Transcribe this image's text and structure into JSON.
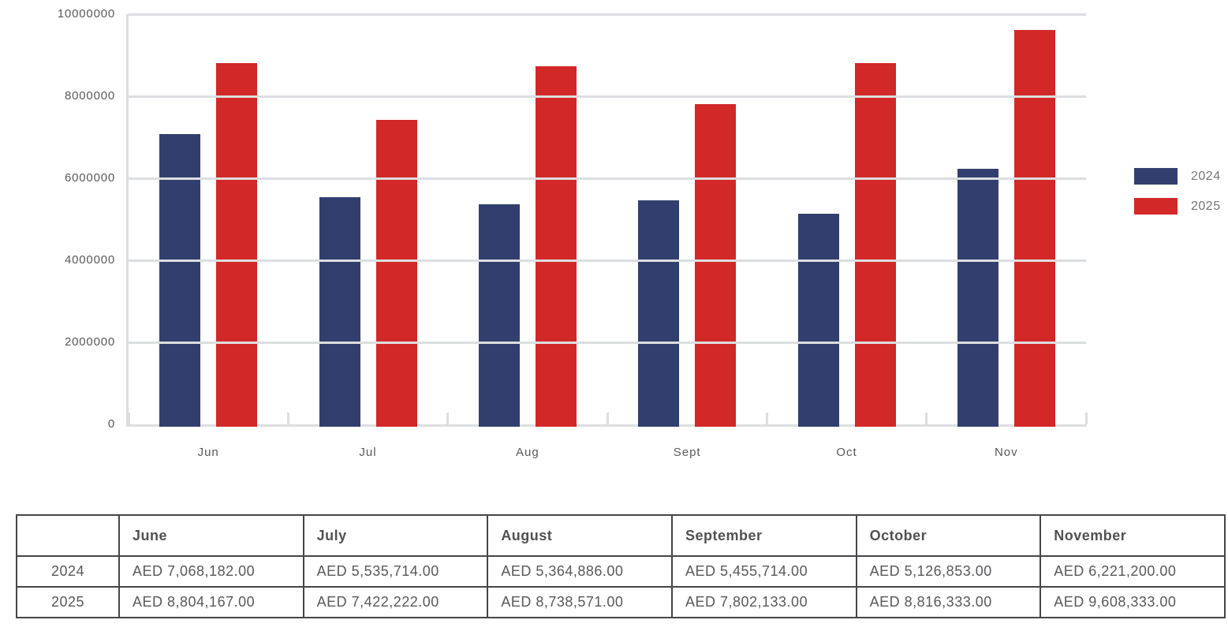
{
  "chart_data": {
    "type": "bar",
    "title": "",
    "categories": [
      "Jun",
      "Jul",
      "Aug",
      "Sept",
      "Oct",
      "Nov"
    ],
    "series": [
      {
        "name": "2024",
        "color": "#323F6E",
        "values": [
          7068182,
          5535714,
          5364886,
          5455714,
          5126853,
          6221200
        ]
      },
      {
        "name": "2025",
        "color": "#D22828",
        "values": [
          8804167,
          7422222,
          8738571,
          7802133,
          8816333,
          9608333
        ]
      }
    ],
    "xlabel": "",
    "ylabel": "",
    "ylim": [
      0,
      10000000
    ],
    "ytick_interval": 2000000,
    "ytick_labels": [
      "0",
      "2000000",
      "4000000",
      "6000000",
      "8000000",
      "10000000"
    ],
    "grid": true,
    "legend_position": "right"
  },
  "legend": {
    "items": [
      {
        "label": "2024",
        "color": "#323F6E"
      },
      {
        "label": "2025",
        "color": "#D22828"
      }
    ]
  },
  "table": {
    "corner_label": "",
    "columns": [
      "June",
      "July",
      "August",
      "September",
      "October",
      "November"
    ],
    "rows": [
      {
        "label": "2024",
        "values": [
          "AED 7,068,182.00",
          "AED 5,535,714.00",
          "AED 5,364,886.00",
          "AED 5,455,714.00",
          "AED 5,126,853.00",
          "AED 6,221,200.00"
        ]
      },
      {
        "label": "2025",
        "values": [
          "AED 8,804,167.00",
          "AED 7,422,222.00",
          "AED 8,738,571.00",
          "AED 7,802,133.00",
          "AED 8,816,333.00",
          "AED 9,608,333.00"
        ]
      }
    ]
  },
  "colors": {
    "bar_2024": "#323F6E",
    "bar_2025": "#D22828",
    "grid_line": "#DCDEE0",
    "axis_line": "#DCDEE0",
    "axis_text": "#58595B",
    "legend_text": "#747578",
    "table_border": "#454648",
    "table_text": "#58595B"
  }
}
